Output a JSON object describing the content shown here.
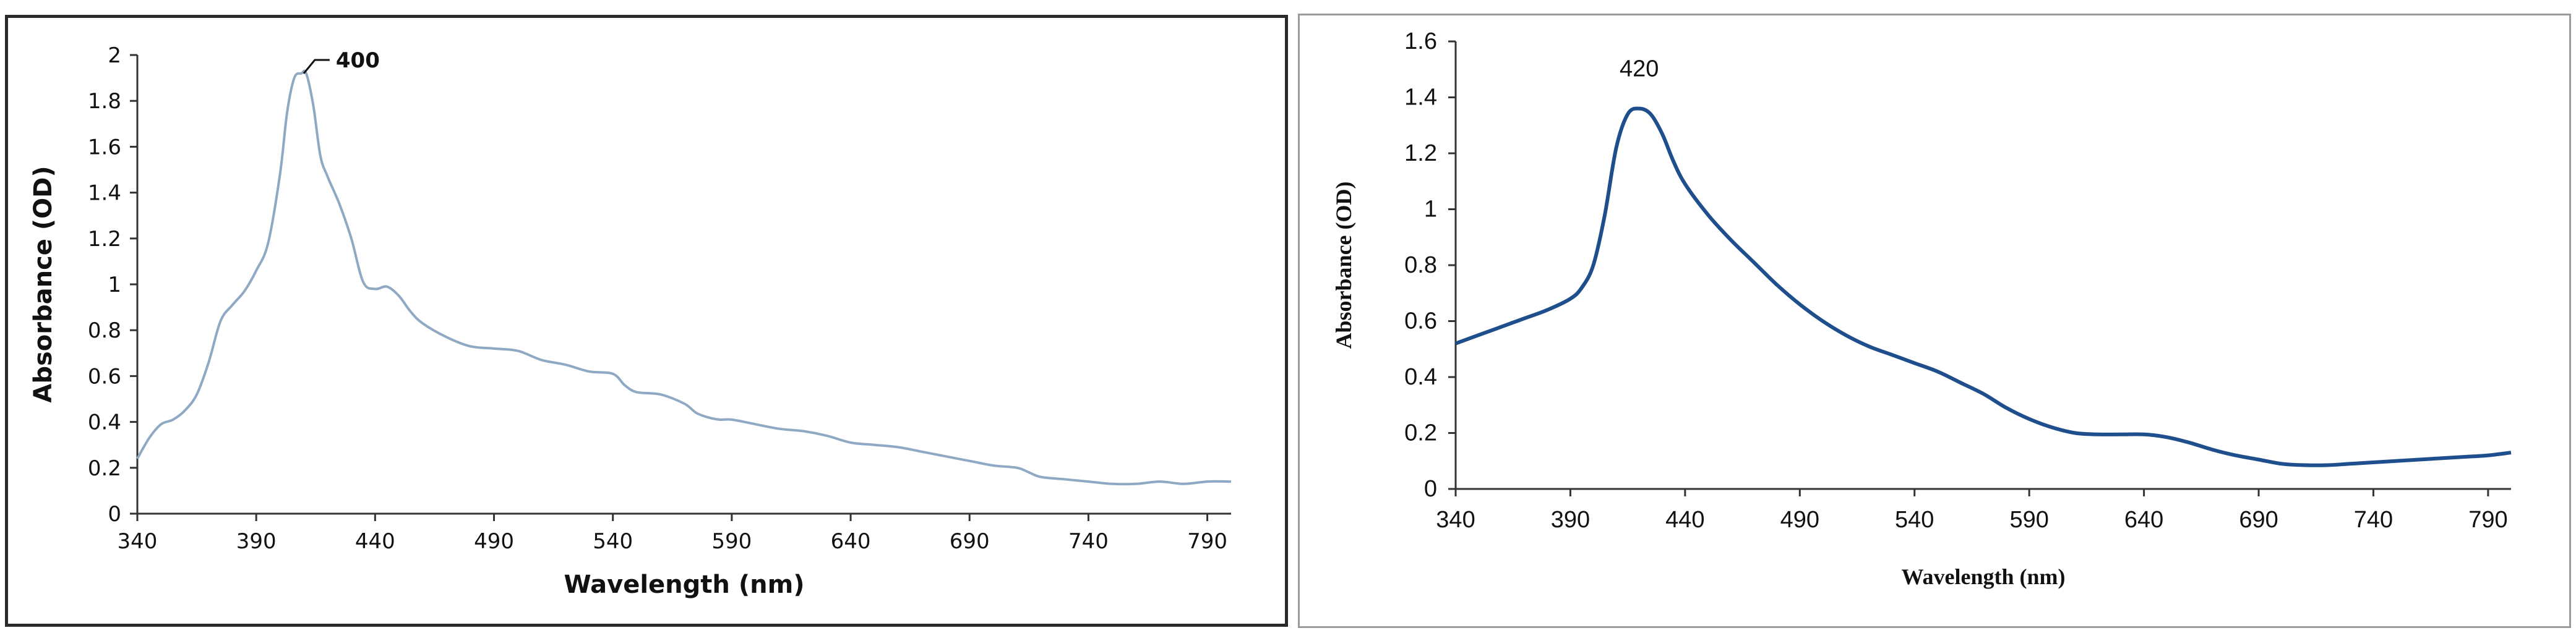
{
  "chart_data": [
    {
      "type": "line",
      "xlabel": "Wavelength (nm)",
      "ylabel": "Absorbance (OD)",
      "xlim": [
        340,
        800
      ],
      "ylim": [
        0,
        2
      ],
      "x_ticks": [
        340,
        390,
        440,
        490,
        540,
        590,
        640,
        690,
        740,
        790
      ],
      "y_ticks": [
        0,
        0.2,
        0.4,
        0.6,
        0.8,
        1,
        1.2,
        1.4,
        1.6,
        1.8,
        2
      ],
      "grid": false,
      "line_color": "#8fa9c4",
      "annotation": {
        "text": "400",
        "x": 411,
        "y": 1.93
      },
      "series": [
        {
          "x": [
            340,
            345,
            350,
            355,
            360,
            365,
            370,
            375,
            380,
            385,
            390,
            395,
            400,
            403,
            406,
            409,
            411,
            414,
            417,
            420,
            425,
            430,
            435,
            440,
            445,
            450,
            455,
            460,
            470,
            480,
            490,
            500,
            510,
            520,
            530,
            540,
            545,
            550,
            560,
            570,
            575,
            580,
            585,
            590,
            600,
            610,
            620,
            630,
            640,
            650,
            660,
            670,
            680,
            690,
            700,
            710,
            715,
            720,
            730,
            740,
            750,
            760,
            770,
            780,
            790,
            800
          ],
          "y": [
            0.24,
            0.33,
            0.39,
            0.41,
            0.45,
            0.52,
            0.66,
            0.84,
            0.91,
            0.97,
            1.06,
            1.18,
            1.48,
            1.75,
            1.9,
            1.92,
            1.92,
            1.78,
            1.56,
            1.47,
            1.35,
            1.2,
            1.01,
            0.98,
            0.99,
            0.95,
            0.88,
            0.83,
            0.77,
            0.73,
            0.72,
            0.71,
            0.67,
            0.65,
            0.62,
            0.61,
            0.56,
            0.53,
            0.52,
            0.48,
            0.44,
            0.42,
            0.41,
            0.41,
            0.39,
            0.37,
            0.36,
            0.34,
            0.31,
            0.3,
            0.29,
            0.27,
            0.25,
            0.23,
            0.21,
            0.2,
            0.18,
            0.16,
            0.15,
            0.14,
            0.13,
            0.13,
            0.14,
            0.13,
            0.14,
            0.14
          ]
        }
      ]
    },
    {
      "type": "line",
      "xlabel": "Wavelength (nm)",
      "ylabel": "Absorbance (OD)",
      "xlim": [
        340,
        800
      ],
      "ylim": [
        0,
        1.6
      ],
      "x_ticks": [
        340,
        390,
        440,
        490,
        540,
        590,
        640,
        690,
        740,
        790
      ],
      "y_ticks": [
        0,
        0.2,
        0.4,
        0.6,
        0.8,
        1,
        1.2,
        1.4,
        1.6
      ],
      "grid": false,
      "line_color": "#1f4e8c",
      "annotation": {
        "text": "420",
        "x": 420,
        "y": 1.36
      },
      "series": [
        {
          "x": [
            340,
            350,
            360,
            370,
            380,
            390,
            395,
            400,
            405,
            410,
            415,
            420,
            425,
            430,
            435,
            440,
            450,
            460,
            470,
            480,
            490,
            500,
            510,
            520,
            530,
            540,
            550,
            560,
            570,
            580,
            590,
            600,
            610,
            620,
            630,
            640,
            650,
            660,
            670,
            680,
            690,
            700,
            710,
            720,
            730,
            740,
            750,
            760,
            770,
            780,
            790,
            800
          ],
          "y": [
            0.52,
            0.55,
            0.58,
            0.61,
            0.64,
            0.68,
            0.72,
            0.8,
            0.98,
            1.22,
            1.34,
            1.36,
            1.34,
            1.27,
            1.17,
            1.09,
            0.98,
            0.89,
            0.81,
            0.73,
            0.66,
            0.6,
            0.55,
            0.51,
            0.48,
            0.45,
            0.42,
            0.38,
            0.34,
            0.29,
            0.25,
            0.22,
            0.2,
            0.195,
            0.195,
            0.195,
            0.185,
            0.165,
            0.14,
            0.12,
            0.105,
            0.09,
            0.085,
            0.085,
            0.09,
            0.095,
            0.1,
            0.105,
            0.11,
            0.115,
            0.12,
            0.13
          ]
        }
      ]
    }
  ]
}
